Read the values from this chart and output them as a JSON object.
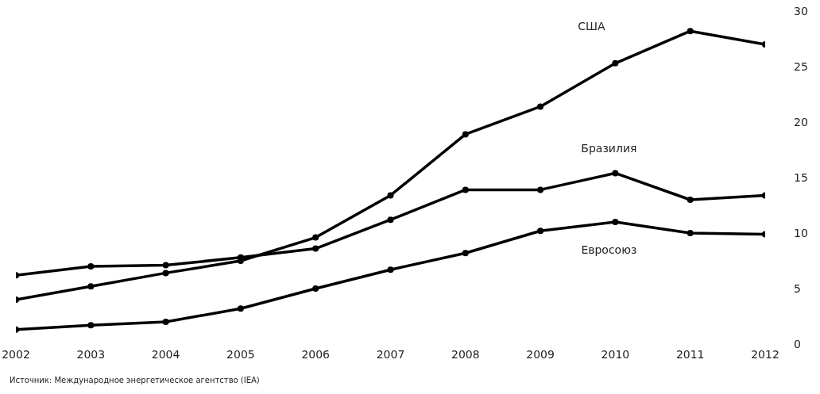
{
  "chart_data": {
    "type": "line",
    "x": [
      2002,
      2003,
      2004,
      2005,
      2006,
      2007,
      2008,
      2009,
      2010,
      2011,
      2012
    ],
    "series": [
      {
        "name": "США",
        "color": "#000000",
        "values": [
          4.0,
          5.2,
          6.4,
          7.5,
          9.6,
          13.4,
          18.9,
          21.4,
          25.3,
          28.2,
          27.0
        ]
      },
      {
        "name": "Бразилия",
        "color": "#000000",
        "values": [
          6.2,
          7.0,
          7.1,
          7.8,
          8.6,
          11.2,
          13.9,
          13.9,
          15.4,
          13.0,
          13.4
        ]
      },
      {
        "name": "Евросоюз",
        "color": "#000000",
        "values": [
          1.3,
          1.7,
          2.0,
          3.2,
          5.0,
          6.7,
          8.2,
          10.2,
          11.0,
          10.0,
          9.9
        ]
      }
    ],
    "xlim": [
      2002,
      2012
    ],
    "xticks": [
      2002,
      2003,
      2004,
      2005,
      2006,
      2007,
      2008,
      2009,
      2010,
      2011,
      2012
    ],
    "ylim": [
      0,
      30
    ],
    "yticks": [
      0,
      5,
      10,
      15,
      20,
      25,
      30
    ],
    "grid": false,
    "legend": false,
    "marker": "circle",
    "line_style": "solid",
    "annotations": [
      "Источник: Международное энергетическое агентство (IEA)"
    ]
  }
}
